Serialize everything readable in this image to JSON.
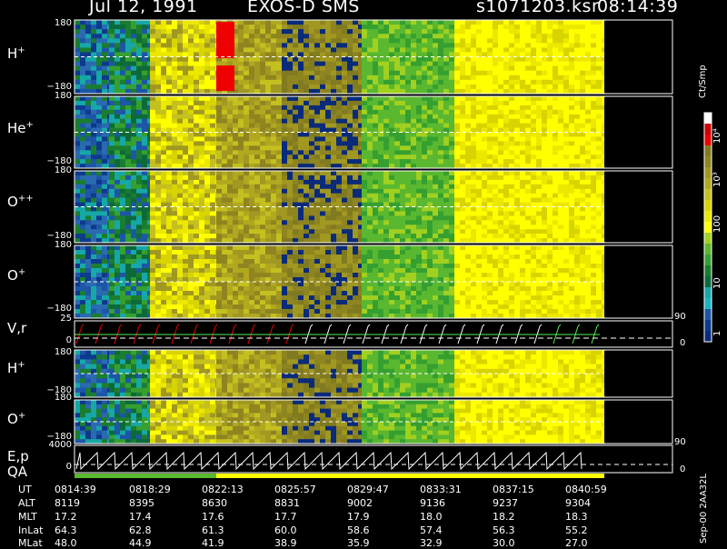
{
  "header": {
    "date": "Jul 12, 1991",
    "title": "EXOS-D SMS",
    "file": "s1071203.ksr",
    "time": "08:14:39"
  },
  "panels": [
    {
      "id": "h",
      "label": "H",
      "sup": "+",
      "ytop": "180",
      "ybot": "−180"
    },
    {
      "id": "he",
      "label": "He",
      "sup": "+",
      "ytop": "180",
      "ybot": "−180"
    },
    {
      "id": "opp",
      "label": "O",
      "sup": "++",
      "ytop": "180",
      "ybot": "−180"
    },
    {
      "id": "op",
      "label": "O",
      "sup": "+",
      "ytop": "180",
      "ybot": "−180"
    },
    {
      "id": "vr",
      "label": "V,r",
      "sup": "",
      "ytop": "25",
      "ybot": "0",
      "rtop": "90",
      "rbot": "0"
    },
    {
      "id": "h2",
      "label": "H",
      "sup": "+",
      "ytop": "180",
      "ybot": "−180"
    },
    {
      "id": "o2",
      "label": "O",
      "sup": "+",
      "ytop": "180",
      "ybot": "−180"
    },
    {
      "id": "ep",
      "label": "E,p",
      "sup": "",
      "ytop": "4000",
      "ybot": "0",
      "rtop": "90",
      "rbot": "0"
    }
  ],
  "qa_label": "QA",
  "colorbar": {
    "unit": "Ct/Smp",
    "labels": [
      "10⁴",
      "10³",
      "100",
      "10",
      "1"
    ],
    "colors": [
      "#ffffff",
      "#cc0000",
      "#ee0000",
      "#807a20",
      "#8e8420",
      "#a09820",
      "#b2a820",
      "#c4c020",
      "#d8d400",
      "#ece800",
      "#ffff00",
      "#a0d020",
      "#5ab830",
      "#35a030",
      "#1b7d2f",
      "#0c6a3a",
      "#16a7a7",
      "#1ab5bf",
      "#1d56a6",
      "#0d3a8c",
      "#0a2a7a"
    ]
  },
  "watermark": "Sep-00 2AA32L",
  "ephemeris": {
    "row_labels": [
      "UT",
      "ALT",
      "MLT",
      "InLat",
      "MLat"
    ],
    "columns": [
      [
        "0814:39",
        "8119",
        "17.2",
        "64.3",
        "48.0"
      ],
      [
        "0818:29",
        "8395",
        "17.4",
        "62.8",
        "44.9"
      ],
      [
        "0822:13",
        "8630",
        "17.6",
        "61.3",
        "41.9"
      ],
      [
        "0825:57",
        "8831",
        "17.7",
        "60.0",
        "38.9"
      ],
      [
        "0829:47",
        "9002",
        "17.9",
        "58.6",
        "35.9"
      ],
      [
        "0833:31",
        "9136",
        "18.0",
        "57.4",
        "32.9"
      ],
      [
        "0837:15",
        "9237",
        "18.2",
        "56.3",
        "30.0"
      ],
      [
        "0840:59",
        "9304",
        "18.3",
        "55.2",
        "27.0"
      ]
    ]
  },
  "chart_data": {
    "type": "heatmap",
    "title": "EXOS-D SMS",
    "x": [
      "0814:39",
      "0818:29",
      "0822:13",
      "0825:57",
      "0829:47",
      "0833:31",
      "0837:15",
      "0840:59"
    ],
    "panels": [
      "H+",
      "He+",
      "O++",
      "O+",
      "V,r",
      "H+",
      "O+",
      "E,p"
    ],
    "ylim_angle": [
      -180,
      180
    ],
    "ylim_vr": [
      0,
      25
    ],
    "ylim_ep": [
      0,
      4000
    ],
    "colorbar_unit": "Ct/Smp",
    "colorbar_scale": "log",
    "colorbar_range": [
      1,
      10000
    ]
  }
}
